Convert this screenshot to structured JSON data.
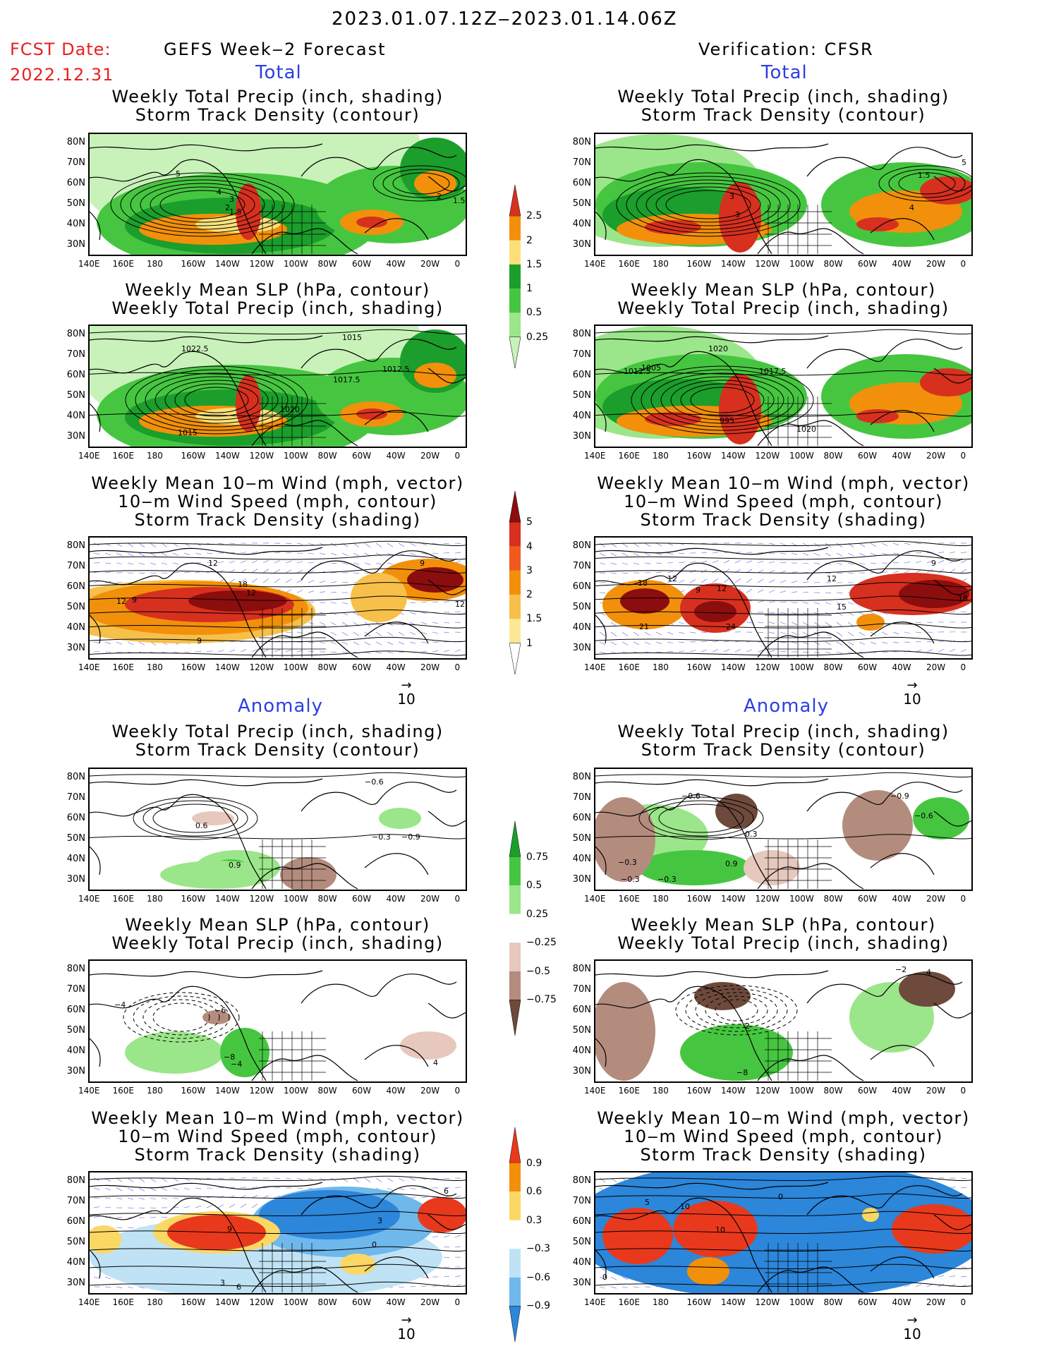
{
  "header": {
    "date_range": "2023.01.07.12Z‒2023.01.14.06Z",
    "fcst_label": "FCST Date:",
    "fcst_date": "2022.12.31",
    "left_title": "GEFS Week‒2 Forecast",
    "right_title": "Verification: CFSR"
  },
  "sections": {
    "total": "Total",
    "anomaly": "Anomaly"
  },
  "panel_titles": {
    "precip_storm": [
      "Weekly Total Precip (inch, shading)",
      "Storm Track Density (contour)"
    ],
    "slp_precip": [
      "Weekly Mean SLP (hPa, contour)",
      "Weekly Total Precip (inch, shading)"
    ],
    "wind_storm": [
      "Weekly Mean 10‒m Wind (mph, vector)",
      "10‒m Wind Speed (mph, contour)",
      "Storm Track Density (shading)"
    ]
  },
  "axes": {
    "lat_labels": [
      "80N",
      "70N",
      "60N",
      "50N",
      "40N",
      "30N"
    ],
    "lon_labels": [
      "140E",
      "160E",
      "180",
      "160W",
      "140W",
      "120W",
      "100W",
      "80W",
      "60W",
      "40W",
      "20W",
      "0"
    ]
  },
  "vector_ref": "10",
  "colorbars": {
    "precip_total": {
      "labels": [
        "2.5",
        "2",
        "1.5",
        "1",
        "0.5",
        "0.25"
      ],
      "colors": [
        "#d7301f",
        "#f2900b",
        "#fbe07a",
        "#1b9e2b",
        "#46c640",
        "#9be68a",
        "#c8f2b9"
      ]
    },
    "storm_total": {
      "labels": [
        "5",
        "4",
        "3",
        "2",
        "1.5",
        "1"
      ],
      "colors": [
        "#8c0d0d",
        "#d7301f",
        "#ef5a1c",
        "#f2900b",
        "#f7c04a",
        "#fbe896",
        "#ffffff"
      ]
    },
    "precip_anom": {
      "labels": [
        "0.75",
        "0.5",
        "0.25",
        "−0.25",
        "−0.5",
        "−0.75"
      ],
      "colors": [
        "#1b9e2b",
        "#46c640",
        "#9be68a",
        "#ffffff",
        "#e6c8bc",
        "#b48c7d",
        "#6e4a3c"
      ]
    },
    "storm_anom": {
      "labels": [
        "0.9",
        "0.6",
        "0.3",
        "−0.3",
        "−0.6",
        "−0.9"
      ],
      "colors": [
        "#e8391c",
        "#f2900b",
        "#fbd764",
        "#ffffff",
        "#bfe3f5",
        "#6fb8ec",
        "#2c86da"
      ]
    }
  },
  "contour_labels": {
    "p1_l": [
      "5",
      "4",
      "3",
      "2",
      "1.5",
      "2",
      "1.5"
    ],
    "p1_r": [
      "3",
      "3",
      "4",
      "1.5",
      "5"
    ],
    "p2_l": [
      "1022.5",
      "1015",
      "1017.5",
      "1012.5",
      "1020",
      "1015"
    ],
    "p2_r": [
      "1012.5",
      "1005",
      "1017.5",
      "1020",
      "995",
      "1020"
    ],
    "p3_l": [
      "12",
      "9",
      "12",
      "18",
      "12",
      "9",
      "12",
      "9"
    ],
    "p3_r": [
      "18",
      "12",
      "9",
      "12",
      "21",
      "24",
      "15",
      "12",
      "9",
      "18"
    ],
    "p4_l": [
      "−0.6",
      "0.6",
      "0.9",
      "−0.3",
      "−0.9"
    ],
    "p4_r": [
      "−0.6",
      "−0.3",
      "0.9",
      "−0.3",
      "−0.3",
      "−0.9",
      "−0.6",
      "0.3"
    ],
    "p5_l": [
      "−4",
      "−6",
      "−8",
      "−4",
      "4"
    ],
    "p5_r": [
      "−2",
      "4",
      "−8",
      "2"
    ],
    "p6_l": [
      "9",
      "3",
      "6",
      "3",
      "0",
      "6"
    ],
    "p6_r": [
      "5",
      "10",
      "10",
      "0",
      "0"
    ]
  }
}
